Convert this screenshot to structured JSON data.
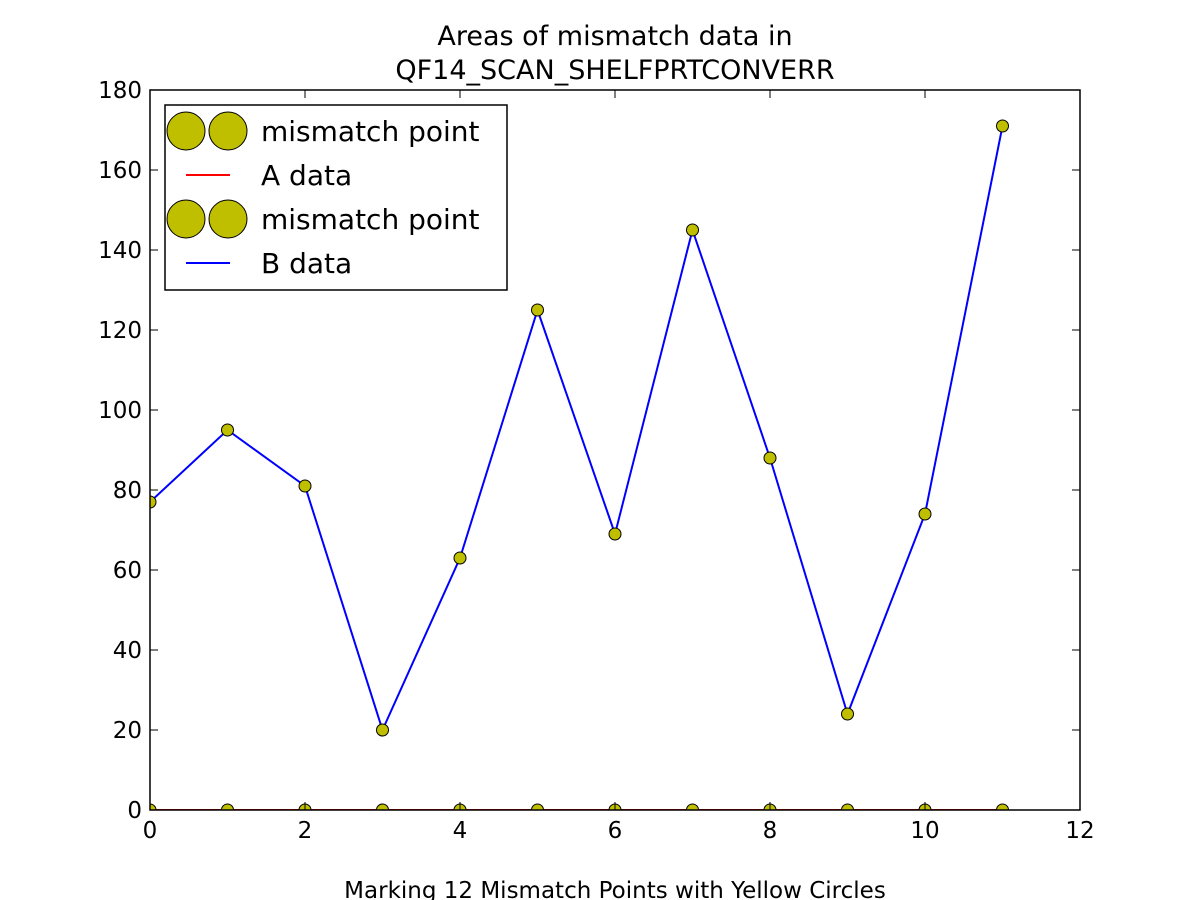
{
  "chart_data": {
    "type": "line",
    "title_line1": "Areas of mismatch data in",
    "title_line2": "QF14_SCAN_SHELFPRTCONVERR",
    "xlabel": "Marking 12 Mismatch Points with Yellow Circles",
    "ylabel": "",
    "xlim": [
      0,
      12
    ],
    "ylim": [
      0,
      180
    ],
    "xticks": [
      0,
      2,
      4,
      6,
      8,
      10,
      12
    ],
    "yticks": [
      0,
      20,
      40,
      60,
      80,
      100,
      120,
      140,
      160,
      180
    ],
    "grid": false,
    "legend_position": "top-left",
    "x": [
      0,
      1,
      2,
      3,
      4,
      5,
      6,
      7,
      8,
      9,
      10,
      11
    ],
    "series": [
      {
        "name": "A data",
        "color": "#ff0000",
        "values": [
          0,
          0,
          0,
          0,
          0,
          0,
          0,
          0,
          0,
          0,
          0,
          0
        ]
      },
      {
        "name": "B data",
        "color": "#0000ff",
        "values": [
          77,
          95,
          81,
          20,
          63,
          125,
          69,
          145,
          88,
          24,
          74,
          171
        ]
      }
    ],
    "markers": {
      "name": "mismatch point",
      "color": "#bfbf00",
      "edge_color": "#000000"
    },
    "legend": [
      {
        "label": "mismatch point",
        "kind": "marker"
      },
      {
        "label": "A data",
        "kind": "line",
        "color": "#ff0000"
      },
      {
        "label": "mismatch point",
        "kind": "marker"
      },
      {
        "label": "B data",
        "kind": "line",
        "color": "#0000ff"
      }
    ]
  }
}
